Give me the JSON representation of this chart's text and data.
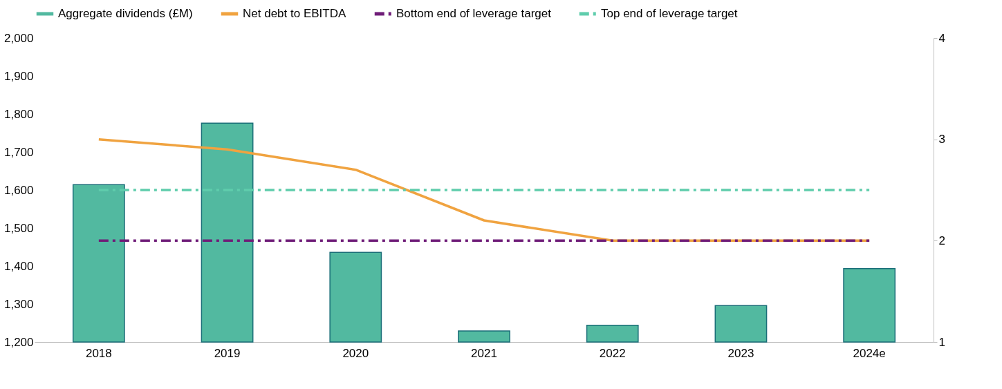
{
  "chart_data": {
    "type": "bar",
    "categories": [
      "2018",
      "2019",
      "2020",
      "2021",
      "2022",
      "2023",
      "2024e"
    ],
    "series": [
      {
        "name": "Aggregate dividends (£M)",
        "color": "#52b9a0",
        "values": [
          1614,
          1776,
          1436,
          1229,
          1244,
          1296,
          1393
        ]
      },
      {
        "name": "Net debt to EBITDA",
        "type": "line",
        "axis": "y2",
        "color": "#f0a340",
        "line_style": "solid",
        "values": [
          3.0,
          2.9,
          2.7,
          2.2,
          2.0,
          2.0,
          2.0
        ]
      },
      {
        "name": "Bottom end of leverage target",
        "type": "line",
        "axis": "y2",
        "color": "#6f1d78",
        "line_style": "dashed",
        "values": [
          2.0,
          2.0,
          2.0,
          2.0,
          2.0,
          2.0,
          2.0
        ]
      },
      {
        "name": "Top end of leverage target",
        "type": "line",
        "axis": "y2",
        "color": "#5fcdac",
        "line_style": "dashed",
        "values": [
          2.5,
          2.5,
          2.5,
          2.5,
          2.5,
          2.5,
          2.5
        ]
      }
    ],
    "ylim": [
      1200,
      2000
    ],
    "yticks": [
      {
        "value": 1200,
        "label": "1,200"
      },
      {
        "value": 1300,
        "label": "1,300"
      },
      {
        "value": 1400,
        "label": "1,400"
      },
      {
        "value": 1500,
        "label": "1,500"
      },
      {
        "value": 1600,
        "label": "1,600"
      },
      {
        "value": 1700,
        "label": "1,700"
      },
      {
        "value": 1800,
        "label": "1,800"
      },
      {
        "value": 1900,
        "label": "1,900"
      },
      {
        "value": 2000,
        "label": "2,000"
      }
    ],
    "y2lim": [
      1,
      4
    ],
    "y2ticks": [
      1,
      2,
      3,
      4
    ],
    "grid": false,
    "legend": "top",
    "marker": "none"
  }
}
